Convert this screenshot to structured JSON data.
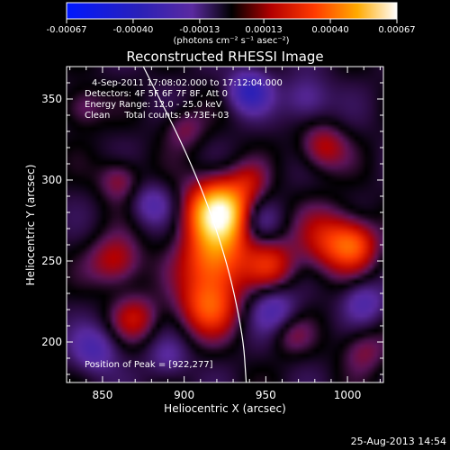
{
  "colorbar": {
    "ticks": [
      "-0.00067",
      "-0.00040",
      "-0.00013",
      "0.00013",
      "0.00040",
      "0.00067"
    ],
    "units_label": "(photons cm⁻² s⁻¹ asec⁻²)",
    "min": -0.00067,
    "max": 0.00067
  },
  "chart_data": {
    "type": "heatmap",
    "title": "Reconstructed RHESSI Image",
    "xlabel": "Heliocentric X (arcsec)",
    "ylabel": "Heliocentric Y (arcsec)",
    "xlim": [
      828,
      1022
    ],
    "ylim": [
      175,
      370
    ],
    "x_ticks": [
      850,
      900,
      950,
      1000
    ],
    "y_ticks": [
      200,
      250,
      300,
      350
    ],
    "annotations": {
      "time_range": "4-Sep-2011 17:08:02.000 to 17:12:04.000",
      "detectors": "Detectors: 4F 5F 6F 7F 8F, Att 0",
      "energy_range": "Energy Range: 12.0 - 25.0 keV",
      "method_counts": "Clean     Total counts: 9.73E+03",
      "peak": "Position of Peak = [922,277]"
    },
    "peak": [
      922,
      277
    ],
    "sources": [
      {
        "x": 922,
        "y": 280,
        "sigma": 14,
        "amp": 1.0
      },
      {
        "x": 918,
        "y": 250,
        "sigma": 14,
        "amp": 0.55
      },
      {
        "x": 915,
        "y": 222,
        "sigma": 13,
        "amp": 0.5
      },
      {
        "x": 953,
        "y": 248,
        "sigma": 11,
        "amp": 0.35
      },
      {
        "x": 990,
        "y": 262,
        "sigma": 14,
        "amp": 0.4
      },
      {
        "x": 1005,
        "y": 260,
        "sigma": 10,
        "amp": 0.35
      },
      {
        "x": 858,
        "y": 250,
        "sigma": 11,
        "amp": 0.35
      },
      {
        "x": 870,
        "y": 215,
        "sigma": 10,
        "amp": 0.3
      },
      {
        "x": 985,
        "y": 320,
        "sigma": 10,
        "amp": 0.32
      },
      {
        "x": 860,
        "y": 300,
        "sigma": 9,
        "amp": 0.25
      },
      {
        "x": 965,
        "y": 205,
        "sigma": 9,
        "amp": 0.18
      },
      {
        "x": 1010,
        "y": 195,
        "sigma": 10,
        "amp": 0.22
      },
      {
        "x": 900,
        "y": 332,
        "sigma": 9,
        "amp": 0.2
      },
      {
        "x": 838,
        "y": 345,
        "sigma": 9,
        "amp": 0.22
      },
      {
        "x": 940,
        "y": 300,
        "sigma": 8,
        "amp": 0.18
      },
      {
        "x": 940,
        "y": 355,
        "sigma": 9,
        "amp": -0.45
      },
      {
        "x": 945,
        "y": 275,
        "sigma": 9,
        "amp": -0.25
      },
      {
        "x": 880,
        "y": 285,
        "sigma": 9,
        "amp": -0.25
      },
      {
        "x": 955,
        "y": 220,
        "sigma": 10,
        "amp": -0.3
      },
      {
        "x": 1010,
        "y": 225,
        "sigma": 9,
        "amp": -0.28
      },
      {
        "x": 975,
        "y": 350,
        "sigma": 10,
        "amp": -0.25
      },
      {
        "x": 845,
        "y": 195,
        "sigma": 10,
        "amp": -0.3
      },
      {
        "x": 890,
        "y": 190,
        "sigma": 9,
        "amp": -0.2
      }
    ],
    "limb_curve": [
      [
        875,
        370
      ],
      [
        905,
        310
      ],
      [
        925,
        255
      ],
      [
        936,
        205
      ],
      [
        938,
        175
      ]
    ]
  },
  "footer": {
    "timestamp": "25-Aug-2013 14:54"
  },
  "colors": {
    "background": "#000000",
    "text": "#ffffff",
    "limb_line": "#ffffff"
  }
}
